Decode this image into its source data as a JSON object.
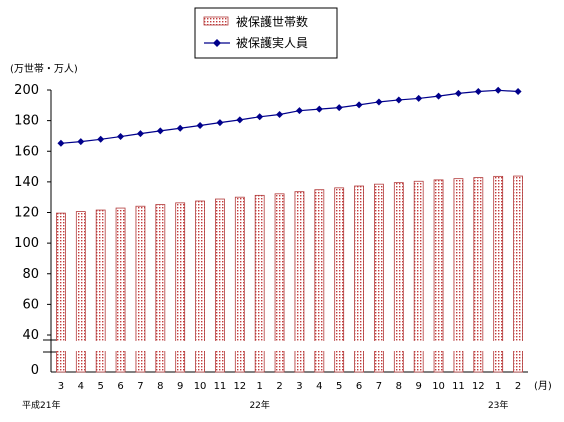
{
  "chart_data": {
    "type": "bar+line",
    "unit_label": "(万世帯・万人)",
    "x_unit": "(月)",
    "categories": [
      "3",
      "4",
      "5",
      "6",
      "7",
      "8",
      "9",
      "10",
      "11",
      "12",
      "1",
      "2",
      "3",
      "4",
      "5",
      "6",
      "7",
      "8",
      "9",
      "10",
      "11",
      "12",
      "1",
      "2"
    ],
    "year_labels": [
      {
        "text": "平成21年",
        "at": 0
      },
      {
        "text": "22年",
        "at": 10
      },
      {
        "text": "23年",
        "at": 22
      }
    ],
    "y_ticks": [
      "0",
      "40",
      "60",
      "80",
      "100",
      "120",
      "140",
      "160",
      "180",
      "200"
    ],
    "ylim": [
      0,
      200
    ],
    "axis_break": [
      0,
      40
    ],
    "series": [
      {
        "name": "被保護世帯数",
        "type": "bar",
        "values": [
          119.6,
          120.6,
          121.6,
          122.9,
          124.1,
          125.2,
          126.3,
          127.5,
          128.8,
          130.0,
          131.2,
          132.2,
          133.6,
          134.9,
          136.1,
          137.3,
          138.5,
          139.5,
          140.4,
          141.3,
          142.1,
          142.8,
          143.6,
          143.8
        ]
      },
      {
        "name": "被保護実人員",
        "type": "line",
        "values": [
          165.2,
          166.3,
          167.8,
          169.6,
          171.5,
          173.3,
          175.0,
          176.8,
          178.7,
          180.5,
          182.5,
          184.0,
          186.5,
          187.5,
          188.5,
          190.3,
          192.2,
          193.5,
          194.5,
          196.0,
          197.8,
          199.0,
          199.8,
          199.0
        ]
      }
    ],
    "colors": {
      "bar_border": "#b23a3a",
      "bar_fill": "#f7e6e6",
      "line": "#00008b"
    }
  }
}
